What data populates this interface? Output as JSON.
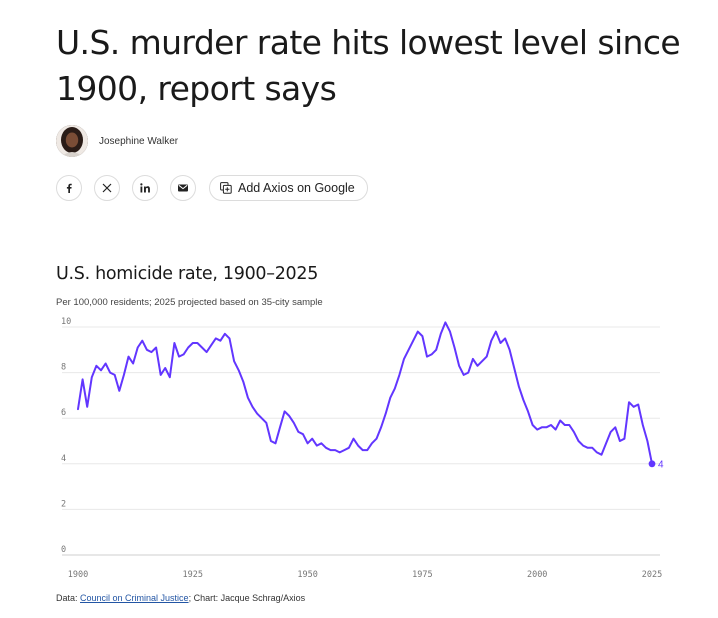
{
  "article": {
    "headline": "U.S. murder rate hits lowest level since 1900, report says",
    "author": "Josephine Walker"
  },
  "share": {
    "buttons": [
      {
        "name": "facebook-share-button",
        "icon": "facebook-icon"
      },
      {
        "name": "x-share-button",
        "icon": "x-icon"
      },
      {
        "name": "linkedin-share-button",
        "icon": "linkedin-icon"
      },
      {
        "name": "email-share-button",
        "icon": "email-icon"
      }
    ],
    "google_label": "Add Axios on Google",
    "google_icon": "add-source-icon"
  },
  "chart": {
    "title": "U.S. homicide rate, 1900–2025",
    "subtitle": "Per 100,000 residents; 2025 projected based on 35-city sample",
    "line_color": "#6236ff",
    "source_prefix": "Data: ",
    "source_link": "Council on Criminal Justice",
    "source_suffix": "; Chart: Jacque Schrag/Axios"
  },
  "chart_data": {
    "type": "line",
    "title": "U.S. homicide rate, 1900–2025",
    "xlabel": "",
    "ylabel": "Per 100,000 residents",
    "xlim": [
      1900,
      2025
    ],
    "ylim": [
      0,
      10
    ],
    "x_ticks": [
      1900,
      1925,
      1950,
      1975,
      2000,
      2025
    ],
    "y_ticks": [
      0,
      2,
      4,
      6,
      8,
      10
    ],
    "grid": true,
    "end_label": "4",
    "series": [
      {
        "name": "Homicide rate",
        "x": [
          1900,
          1901,
          1902,
          1903,
          1904,
          1905,
          1906,
          1907,
          1908,
          1909,
          1910,
          1911,
          1912,
          1913,
          1914,
          1915,
          1916,
          1917,
          1918,
          1919,
          1920,
          1921,
          1922,
          1923,
          1924,
          1925,
          1926,
          1927,
          1928,
          1929,
          1930,
          1931,
          1932,
          1933,
          1934,
          1935,
          1936,
          1937,
          1938,
          1939,
          1940,
          1941,
          1942,
          1943,
          1944,
          1945,
          1946,
          1947,
          1948,
          1949,
          1950,
          1951,
          1952,
          1953,
          1954,
          1955,
          1956,
          1957,
          1958,
          1959,
          1960,
          1961,
          1962,
          1963,
          1964,
          1965,
          1966,
          1967,
          1968,
          1969,
          1970,
          1971,
          1972,
          1973,
          1974,
          1975,
          1976,
          1977,
          1978,
          1979,
          1980,
          1981,
          1982,
          1983,
          1984,
          1985,
          1986,
          1987,
          1988,
          1989,
          1990,
          1991,
          1992,
          1993,
          1994,
          1995,
          1996,
          1997,
          1998,
          1999,
          2000,
          2001,
          2002,
          2003,
          2004,
          2005,
          2006,
          2007,
          2008,
          2009,
          2010,
          2011,
          2012,
          2013,
          2014,
          2015,
          2016,
          2017,
          2018,
          2019,
          2020,
          2021,
          2022,
          2023,
          2024,
          2025
        ],
        "values": [
          6.4,
          7.7,
          6.5,
          7.8,
          8.3,
          8.1,
          8.4,
          8.0,
          7.9,
          7.2,
          7.9,
          8.7,
          8.4,
          9.1,
          9.4,
          9.0,
          8.9,
          9.1,
          7.9,
          8.2,
          7.8,
          9.3,
          8.7,
          8.8,
          9.1,
          9.3,
          9.3,
          9.1,
          8.9,
          9.2,
          9.5,
          9.4,
          9.7,
          9.5,
          8.5,
          8.1,
          7.6,
          6.9,
          6.5,
          6.2,
          6.0,
          5.8,
          5.0,
          4.9,
          5.6,
          6.3,
          6.1,
          5.8,
          5.4,
          5.3,
          4.9,
          5.1,
          4.8,
          4.9,
          4.7,
          4.6,
          4.6,
          4.5,
          4.6,
          4.7,
          5.1,
          4.8,
          4.6,
          4.6,
          4.9,
          5.1,
          5.6,
          6.2,
          6.9,
          7.3,
          7.9,
          8.6,
          9.0,
          9.4,
          9.8,
          9.6,
          8.7,
          8.8,
          9.0,
          9.7,
          10.2,
          9.8,
          9.1,
          8.3,
          7.9,
          8.0,
          8.6,
          8.3,
          8.5,
          8.7,
          9.4,
          9.8,
          9.3,
          9.5,
          9.0,
          8.2,
          7.4,
          6.8,
          6.3,
          5.7,
          5.5,
          5.6,
          5.6,
          5.7,
          5.5,
          5.9,
          5.7,
          5.7,
          5.4,
          5.0,
          4.8,
          4.7,
          4.7,
          4.5,
          4.4,
          4.9,
          5.4,
          5.6,
          5.0,
          5.1,
          6.7,
          6.5,
          6.6,
          5.7,
          5.0,
          4.0
        ]
      }
    ]
  }
}
